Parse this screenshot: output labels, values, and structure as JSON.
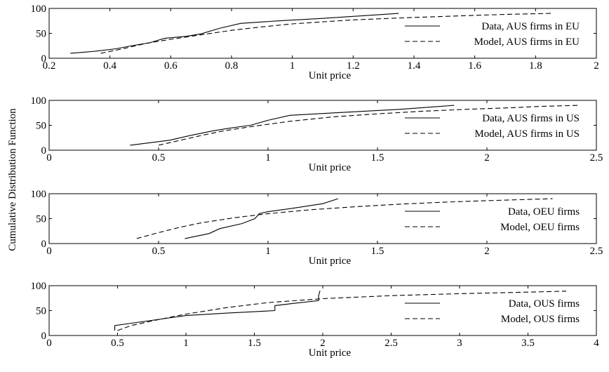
{
  "figure": {
    "ylabel": "Cumulative Distribution Function"
  },
  "chart_data": [
    {
      "type": "line",
      "xlabel": "Unit price",
      "xlim": [
        0.2,
        2
      ],
      "ylim": [
        0,
        100
      ],
      "xticks": [
        0.2,
        0.4,
        0.6,
        0.8,
        1,
        1.2,
        1.4,
        1.6,
        1.8,
        2
      ],
      "xtick_labels": [
        "0.2",
        "0.4",
        "0.6",
        "0.8",
        "1",
        "1.2",
        "1.4",
        "1.6",
        "1.8",
        "2"
      ],
      "yticks": [
        0,
        50,
        100
      ],
      "ytick_labels": [
        "0",
        "50",
        "100"
      ],
      "legend_position": "right",
      "series": [
        {
          "name": "Data, AUS firms in EU",
          "style": "solid",
          "x": [
            0.27,
            0.35,
            0.42,
            0.48,
            0.53,
            0.58,
            0.65,
            0.7,
            0.76,
            0.83,
            0.95,
            1.1,
            1.25,
            1.35
          ],
          "y": [
            10,
            14,
            19,
            26,
            31,
            40,
            44,
            49,
            60,
            70,
            75,
            80,
            86,
            90
          ]
        },
        {
          "name": "Model, AUS firms in EU",
          "style": "dashed",
          "x": [
            0.37,
            0.45,
            0.52,
            0.6,
            0.7,
            0.8,
            0.9,
            1.0,
            1.2,
            1.4,
            1.55,
            1.7,
            1.85
          ],
          "y": [
            10,
            20,
            30,
            38,
            47,
            56,
            63,
            69,
            77,
            82,
            85,
            88,
            90
          ]
        }
      ]
    },
    {
      "type": "line",
      "xlabel": "Unit price",
      "xlim": [
        0,
        2.5
      ],
      "ylim": [
        0,
        100
      ],
      "xticks": [
        0,
        0.5,
        1,
        1.5,
        2,
        2.5
      ],
      "xtick_labels": [
        "0",
        "0.5",
        "1",
        "1.5",
        "2",
        "2.5"
      ],
      "yticks": [
        0,
        50,
        100
      ],
      "ytick_labels": [
        "0",
        "50",
        "100"
      ],
      "legend_position": "right",
      "series": [
        {
          "name": "Data, AUS firms in US",
          "style": "solid",
          "x": [
            0.37,
            0.55,
            0.65,
            0.75,
            0.82,
            0.92,
            1.0,
            1.1,
            1.3,
            1.6,
            1.85
          ],
          "y": [
            10,
            20,
            30,
            39,
            44,
            50,
            60,
            70,
            75,
            82,
            90
          ]
        },
        {
          "name": "Model, AUS firms in US",
          "style": "dashed",
          "x": [
            0.5,
            0.6,
            0.7,
            0.8,
            0.95,
            1.1,
            1.3,
            1.5,
            1.7,
            1.9,
            2.1,
            2.25,
            2.42
          ],
          "y": [
            10,
            20,
            30,
            39,
            49,
            58,
            67,
            73,
            78,
            82,
            85,
            88,
            90
          ]
        }
      ]
    },
    {
      "type": "line",
      "xlabel": "Unit price",
      "xlim": [
        0,
        2.5
      ],
      "ylim": [
        0,
        100
      ],
      "xticks": [
        0,
        0.5,
        1,
        1.5,
        2,
        2.5
      ],
      "xtick_labels": [
        "0",
        "0.5",
        "1",
        "1.5",
        "2",
        "2.5"
      ],
      "yticks": [
        0,
        50,
        100
      ],
      "ytick_labels": [
        "0",
        "50",
        "100"
      ],
      "legend_position": "right",
      "series": [
        {
          "name": "Data, OEU firms",
          "style": "solid",
          "x": [
            0.62,
            0.73,
            0.78,
            0.88,
            0.94,
            0.96,
            1.0,
            1.1,
            1.25,
            1.32
          ],
          "y": [
            10,
            20,
            30,
            40,
            50,
            60,
            64,
            70,
            80,
            90
          ]
        },
        {
          "name": "Model, OEU firms",
          "style": "dashed",
          "x": [
            0.4,
            0.5,
            0.6,
            0.7,
            0.85,
            1.0,
            1.2,
            1.4,
            1.6,
            1.8,
            2.0,
            2.15,
            2.3
          ],
          "y": [
            10,
            22,
            33,
            42,
            52,
            60,
            68,
            74,
            79,
            83,
            86,
            88,
            90
          ]
        }
      ]
    },
    {
      "type": "line",
      "xlabel": "Unit price",
      "xlim": [
        0,
        4
      ],
      "ylim": [
        0,
        100
      ],
      "xticks": [
        0,
        0.5,
        1,
        1.5,
        2,
        2.5,
        3,
        3.5,
        4
      ],
      "xtick_labels": [
        "0",
        "0.5",
        "1",
        "1.5",
        "2",
        "2.5",
        "3",
        "3.5",
        "4"
      ],
      "yticks": [
        0,
        50,
        100
      ],
      "ytick_labels": [
        "0",
        "50",
        "100"
      ],
      "legend_position": "right",
      "series": [
        {
          "name": "Data, OUS firms",
          "style": "solid",
          "x": [
            0.48,
            0.48,
            1.0,
            1.3,
            1.65,
            1.65,
            1.8,
            1.97,
            1.97,
            1.98
          ],
          "y": [
            10,
            20,
            40,
            45,
            50,
            60,
            65,
            70,
            80,
            90
          ]
        },
        {
          "name": "Model, OUS firms",
          "style": "dashed",
          "x": [
            0.5,
            0.6,
            0.8,
            1.0,
            1.3,
            1.6,
            2.0,
            2.5,
            3.0,
            3.5,
            3.78
          ],
          "y": [
            10,
            20,
            32,
            43,
            56,
            66,
            74,
            80,
            84,
            87,
            89
          ]
        }
      ]
    }
  ]
}
